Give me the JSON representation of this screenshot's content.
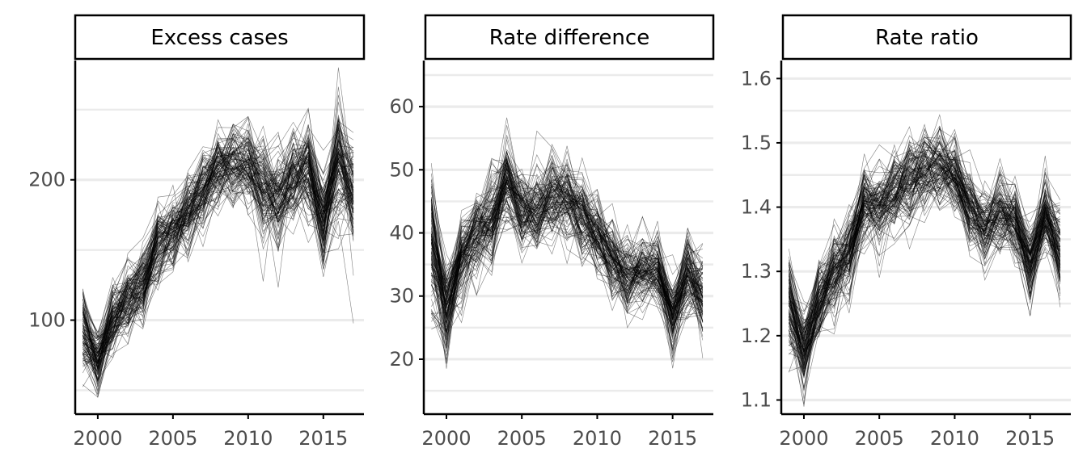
{
  "figure": {
    "style": {
      "background": "#ffffff",
      "strip_fill": "#ffffff",
      "strip_border": "#000000",
      "grid_color": "#ebebeb",
      "axis_color": "#000000",
      "line_color": "#000000",
      "tick_label_color": "#4d4d4d"
    },
    "simulation_note_draws": 120
  },
  "chart_data": [
    {
      "type": "line",
      "panel": "Excess cases",
      "title": "Excess cases",
      "xlabel": "",
      "ylabel": "",
      "xlim": [
        1998.5,
        2017.7
      ],
      "ylim": [
        33,
        285
      ],
      "x_ticks": [
        2000,
        2005,
        2010,
        2015
      ],
      "y_ticks": [
        100,
        200
      ],
      "y_minor_grid": [
        50,
        150,
        250
      ],
      "grid": "horizontal",
      "x": [
        1999,
        2000,
        2001,
        2002,
        2003,
        2004,
        2005,
        2006,
        2007,
        2008,
        2009,
        2010,
        2011,
        2012,
        2013,
        2014,
        2015,
        2016,
        2017
      ],
      "central": [
        92,
        72,
        98,
        115,
        128,
        155,
        162,
        178,
        192,
        208,
        212,
        212,
        196,
        186,
        200,
        210,
        172,
        212,
        190
      ],
      "spread": [
        18,
        14,
        14,
        15,
        15,
        15,
        15,
        15,
        17,
        17,
        18,
        18,
        20,
        20,
        20,
        22,
        20,
        24,
        24
      ],
      "n_draws": 120
    },
    {
      "type": "line",
      "panel": "Rate difference",
      "title": "Rate difference",
      "xlabel": "",
      "ylabel": "",
      "xlim": [
        1998.5,
        2017.7
      ],
      "ylim": [
        11.3,
        67.3
      ],
      "x_ticks": [
        2000,
        2005,
        2010,
        2015
      ],
      "y_ticks": [
        20,
        30,
        40,
        50,
        60
      ],
      "y_minor_grid": [
        15,
        25,
        35,
        45,
        55,
        65
      ],
      "grid": "horizontal",
      "x": [
        1999,
        2000,
        2001,
        2002,
        2003,
        2004,
        2005,
        2006,
        2007,
        2008,
        2009,
        2010,
        2011,
        2012,
        2013,
        2014,
        2015,
        2016,
        2017
      ],
      "central": [
        38,
        28,
        36,
        40,
        42,
        48,
        44,
        44,
        46,
        46,
        43,
        40,
        36,
        33,
        34,
        34,
        27,
        33,
        30
      ],
      "spread": [
        6,
        5,
        4,
        4,
        4,
        4,
        4,
        4,
        4,
        4,
        4,
        3.5,
        3.5,
        3.5,
        3.5,
        3.5,
        3.5,
        3.5,
        4
      ],
      "n_draws": 120
    },
    {
      "type": "line",
      "panel": "Rate ratio",
      "title": "Rate ratio",
      "xlabel": "",
      "ylabel": "",
      "xlim": [
        1998.5,
        2017.7
      ],
      "ylim": [
        1.078,
        1.628
      ],
      "x_ticks": [
        2000,
        2005,
        2010,
        2015
      ],
      "y_ticks": [
        1.1,
        1.2,
        1.3,
        1.4,
        1.5,
        1.6
      ],
      "y_minor_grid": [
        1.15,
        1.25,
        1.35,
        1.45,
        1.55
      ],
      "grid": "horizontal",
      "x": [
        1999,
        2000,
        2001,
        2002,
        2003,
        2004,
        2005,
        2006,
        2007,
        2008,
        2009,
        2010,
        2011,
        2012,
        2013,
        2014,
        2015,
        2016,
        2017
      ],
      "central": [
        1.25,
        1.18,
        1.25,
        1.3,
        1.33,
        1.4,
        1.4,
        1.42,
        1.44,
        1.46,
        1.46,
        1.45,
        1.4,
        1.37,
        1.39,
        1.38,
        1.31,
        1.39,
        1.33
      ],
      "spread": [
        0.04,
        0.035,
        0.035,
        0.035,
        0.035,
        0.035,
        0.035,
        0.035,
        0.035,
        0.035,
        0.035,
        0.035,
        0.035,
        0.035,
        0.035,
        0.035,
        0.035,
        0.035,
        0.04
      ],
      "n_draws": 120
    }
  ]
}
